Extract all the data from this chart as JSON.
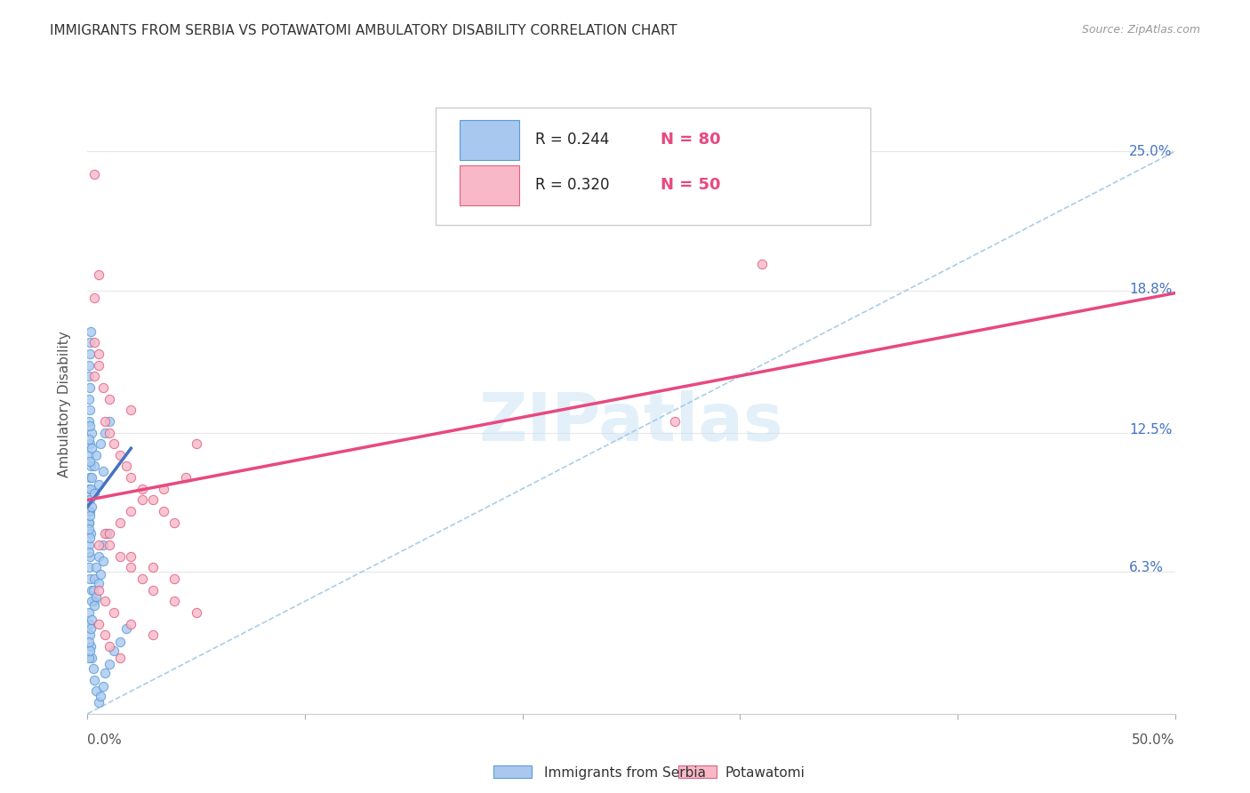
{
  "title": "IMMIGRANTS FROM SERBIA VS POTAWATOMI AMBULATORY DISABILITY CORRELATION CHART",
  "source": "Source: ZipAtlas.com",
  "ylabel": "Ambulatory Disability",
  "ytick_labels": [
    "6.3%",
    "12.5%",
    "18.8%",
    "25.0%"
  ],
  "ytick_values": [
    0.063,
    0.125,
    0.188,
    0.25
  ],
  "xlim": [
    0.0,
    0.5
  ],
  "ylim": [
    0.0,
    0.275
  ],
  "legend_r1": "R = 0.244",
  "legend_n1": "N = 80",
  "legend_r2": "R = 0.320",
  "legend_n2": "N = 50",
  "color_serbia_fill": "#a8c8f0",
  "color_serbia_edge": "#5b9bd5",
  "color_potawatomi_fill": "#f8b8c8",
  "color_potawatomi_edge": "#e06080",
  "color_serbia_line": "#4472c4",
  "color_potawatomi_line": "#e84880",
  "color_dashed_line": "#a0c8e8",
  "color_r_n": "#4472c4",
  "color_n_val": "#e84880",
  "serbia_scatter_x": [
    0.0005,
    0.0008,
    0.001,
    0.0012,
    0.0015,
    0.0005,
    0.001,
    0.002,
    0.0008,
    0.0015,
    0.0005,
    0.001,
    0.0008,
    0.0012,
    0.0018,
    0.003,
    0.0005,
    0.001,
    0.0008,
    0.0012,
    0.0005,
    0.0008,
    0.001,
    0.0015,
    0.002,
    0.0025,
    0.003,
    0.004,
    0.005,
    0.006,
    0.007,
    0.008,
    0.01,
    0.012,
    0.015,
    0.018,
    0.0005,
    0.0008,
    0.001,
    0.0012,
    0.0015,
    0.002,
    0.0025,
    0.003,
    0.004,
    0.005,
    0.007,
    0.009,
    0.0005,
    0.0008,
    0.001,
    0.0015,
    0.002,
    0.003,
    0.004,
    0.006,
    0.008,
    0.01,
    0.0005,
    0.001,
    0.0008,
    0.0015,
    0.002,
    0.003,
    0.004,
    0.005,
    0.006,
    0.007,
    0.0005,
    0.001,
    0.0008,
    0.0012,
    0.002,
    0.003,
    0.005,
    0.007,
    0.001,
    0.002,
    0.0005,
    0.001
  ],
  "serbia_scatter_y": [
    0.095,
    0.1,
    0.105,
    0.09,
    0.11,
    0.115,
    0.12,
    0.125,
    0.085,
    0.08,
    0.075,
    0.07,
    0.065,
    0.06,
    0.055,
    0.05,
    0.13,
    0.135,
    0.14,
    0.145,
    0.045,
    0.04,
    0.035,
    0.03,
    0.025,
    0.02,
    0.015,
    0.01,
    0.005,
    0.008,
    0.012,
    0.018,
    0.022,
    0.028,
    0.032,
    0.038,
    0.15,
    0.155,
    0.16,
    0.165,
    0.17,
    0.05,
    0.055,
    0.06,
    0.065,
    0.07,
    0.075,
    0.08,
    0.085,
    0.09,
    0.095,
    0.1,
    0.105,
    0.11,
    0.115,
    0.12,
    0.125,
    0.13,
    0.025,
    0.028,
    0.032,
    0.038,
    0.042,
    0.048,
    0.052,
    0.058,
    0.062,
    0.068,
    0.072,
    0.078,
    0.082,
    0.088,
    0.092,
    0.098,
    0.102,
    0.108,
    0.112,
    0.118,
    0.122,
    0.128
  ],
  "potawatomi_scatter_x": [
    0.003,
    0.005,
    0.007,
    0.003,
    0.005,
    0.008,
    0.01,
    0.012,
    0.015,
    0.018,
    0.02,
    0.025,
    0.03,
    0.035,
    0.04,
    0.003,
    0.005,
    0.008,
    0.01,
    0.015,
    0.02,
    0.025,
    0.03,
    0.04,
    0.05,
    0.003,
    0.005,
    0.008,
    0.01,
    0.015,
    0.02,
    0.03,
    0.04,
    0.005,
    0.01,
    0.015,
    0.02,
    0.025,
    0.035,
    0.045,
    0.005,
    0.008,
    0.012,
    0.02,
    0.03,
    0.01,
    0.02,
    0.31,
    0.27,
    0.05
  ],
  "potawatomi_scatter_y": [
    0.15,
    0.155,
    0.145,
    0.185,
    0.195,
    0.13,
    0.125,
    0.12,
    0.115,
    0.11,
    0.105,
    0.1,
    0.095,
    0.09,
    0.085,
    0.165,
    0.16,
    0.08,
    0.075,
    0.07,
    0.065,
    0.06,
    0.055,
    0.05,
    0.045,
    0.24,
    0.04,
    0.035,
    0.03,
    0.025,
    0.07,
    0.065,
    0.06,
    0.075,
    0.08,
    0.085,
    0.09,
    0.095,
    0.1,
    0.105,
    0.055,
    0.05,
    0.045,
    0.04,
    0.035,
    0.14,
    0.135,
    0.2,
    0.13,
    0.12
  ],
  "serbia_line_x": [
    0.0,
    0.02
  ],
  "serbia_line_y": [
    0.092,
    0.118
  ],
  "potawatomi_line_x": [
    0.0,
    0.5
  ],
  "potawatomi_line_y": [
    0.095,
    0.187
  ],
  "dashed_line_x": [
    0.0,
    0.5
  ],
  "dashed_line_y": [
    0.0,
    0.25
  ],
  "watermark": "ZIPatlas",
  "background_color": "#ffffff",
  "grid_color": "#e8e8e8"
}
